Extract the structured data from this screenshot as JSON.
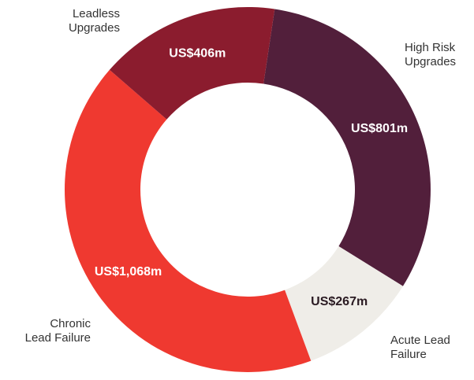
{
  "chart_data": {
    "type": "donut",
    "categories": [
      "High Risk\nUpgrades",
      "Acute Lead\nFailure",
      "Chronic\nLead Failure",
      "Leadless\nUpgrades"
    ],
    "values": [
      801,
      267,
      1068,
      406
    ],
    "value_labels": [
      "US$801m",
      "US$267m",
      "US$1,068m",
      "US$406m"
    ],
    "colors": [
      "#521f3b",
      "#efede8",
      "#ef3930",
      "#8b1c2e"
    ]
  }
}
